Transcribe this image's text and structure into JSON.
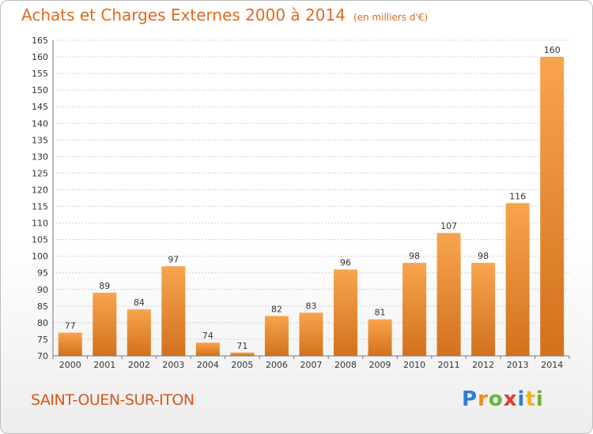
{
  "title": "Achats et Charges Externes 2000 à 2014",
  "subtitle": "(en milliers d'€)",
  "commune": "SAINT-OUEN-SUR-ITON",
  "brand": {
    "letters": [
      "P",
      "r",
      "o",
      "x",
      "i",
      "t",
      "i"
    ],
    "colors": [
      "#2f7fcf",
      "#f08a1c",
      "#6bb53a",
      "#e23a2e",
      "#2f7fcf",
      "#f0b21c",
      "#6bb53a"
    ]
  },
  "colors": {
    "bar_light": "#f7a54d",
    "bar_dark": "#d2711d",
    "title": "#e06a1e",
    "grid": "#d0d0d0"
  },
  "chart_data": {
    "type": "bar",
    "title": "Achats et Charges Externes 2000 à 2014",
    "subtitle": "(en milliers d'€)",
    "xlabel": "",
    "ylabel": "",
    "categories": [
      "2000",
      "2001",
      "2002",
      "2003",
      "2004",
      "2005",
      "2006",
      "2007",
      "2008",
      "2009",
      "2010",
      "2011",
      "2012",
      "2013",
      "2014"
    ],
    "values": [
      77,
      89,
      84,
      97,
      74,
      71,
      82,
      83,
      96,
      81,
      98,
      107,
      98,
      116,
      160
    ],
    "ylim": [
      70,
      165
    ],
    "yticks": [
      70,
      75,
      80,
      85,
      90,
      95,
      100,
      105,
      110,
      115,
      120,
      125,
      130,
      135,
      140,
      145,
      150,
      155,
      160,
      165
    ],
    "grid": true,
    "legend": "none"
  }
}
